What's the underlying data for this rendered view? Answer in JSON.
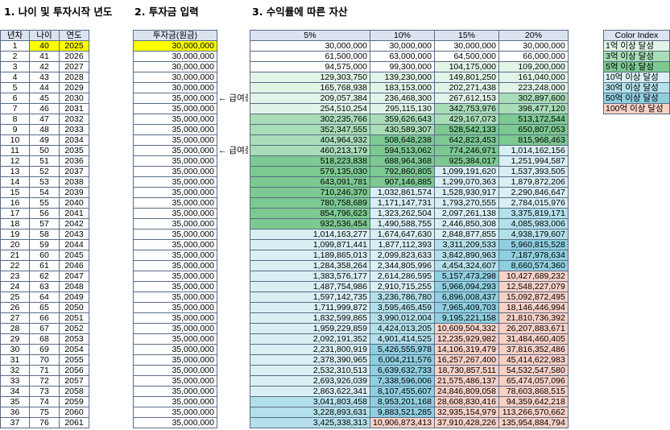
{
  "titles": {
    "section1": "1. 나이 및 투자시작 년도",
    "section2": "2. 투자금 입력",
    "section3": "3. 수익률에 따른 자산"
  },
  "table1": {
    "headers": [
      "년차",
      "나이",
      "연도"
    ],
    "rows": [
      [
        "1",
        "40",
        "2025"
      ],
      [
        "2",
        "41",
        "2026"
      ],
      [
        "3",
        "42",
        "2027"
      ],
      [
        "4",
        "43",
        "2028"
      ],
      [
        "5",
        "44",
        "2029"
      ],
      [
        "6",
        "45",
        "2030"
      ],
      [
        "7",
        "46",
        "2031"
      ],
      [
        "8",
        "47",
        "2032"
      ],
      [
        "9",
        "48",
        "2033"
      ],
      [
        "10",
        "49",
        "2034"
      ],
      [
        "11",
        "50",
        "2035"
      ],
      [
        "12",
        "51",
        "2036"
      ],
      [
        "13",
        "52",
        "2037"
      ],
      [
        "14",
        "53",
        "2038"
      ],
      [
        "15",
        "54",
        "2039"
      ],
      [
        "16",
        "55",
        "2040"
      ],
      [
        "17",
        "56",
        "2041"
      ],
      [
        "18",
        "57",
        "2042"
      ],
      [
        "19",
        "58",
        "2043"
      ],
      [
        "20",
        "59",
        "2044"
      ],
      [
        "21",
        "60",
        "2045"
      ],
      [
        "22",
        "61",
        "2046"
      ],
      [
        "23",
        "62",
        "2047"
      ],
      [
        "24",
        "63",
        "2048"
      ],
      [
        "25",
        "64",
        "2049"
      ],
      [
        "26",
        "65",
        "2050"
      ],
      [
        "27",
        "66",
        "2051"
      ],
      [
        "28",
        "67",
        "2052"
      ],
      [
        "29",
        "68",
        "2053"
      ],
      [
        "30",
        "69",
        "2054"
      ],
      [
        "31",
        "70",
        "2055"
      ],
      [
        "32",
        "71",
        "2056"
      ],
      [
        "33",
        "72",
        "2057"
      ],
      [
        "34",
        "73",
        "2058"
      ],
      [
        "35",
        "74",
        "2059"
      ],
      [
        "36",
        "75",
        "2060"
      ],
      [
        "37",
        "76",
        "2061"
      ]
    ]
  },
  "table2": {
    "header": "투자금(원금)",
    "values": [
      "30,000,000",
      "30,000,000",
      "30,000,000",
      "30,000,000",
      "30,000,000",
      "35,000,000",
      "35,000,000",
      "35,000,000",
      "35,000,000",
      "35,000,000",
      "35,000,000",
      "35,000,000",
      "35,000,000",
      "35,000,000",
      "35,000,000",
      "35,000,000",
      "35,000,000",
      "35,000,000",
      "35,000,000",
      "35,000,000",
      "35,000,000",
      "35,000,000",
      "35,000,000",
      "35,000,000",
      "35,000,000",
      "35,000,000",
      "35,000,000",
      "35,000,000",
      "35,000,000",
      "35,000,000",
      "35,000,000",
      "35,000,000",
      "35,000,000",
      "35,000,000",
      "35,000,000",
      "35,000,000",
      "35,000,000"
    ]
  },
  "notes": [
    {
      "row": 5,
      "text": "← 급여증가"
    },
    {
      "row": 10,
      "text": "← 급여증가"
    }
  ],
  "table3": {
    "headers": [
      "5%",
      "10%",
      "15%",
      "20%"
    ],
    "rows": [
      [
        "30,000,000",
        "30,000,000",
        "30,000,000",
        "30,000,000"
      ],
      [
        "61,500,000",
        "63,000,000",
        "64,500,000",
        "66,000,000"
      ],
      [
        "94,575,000",
        "99,300,000",
        "104,175,000",
        "109,200,000"
      ],
      [
        "129,303,750",
        "139,230,000",
        "149,801,250",
        "161,040,000"
      ],
      [
        "165,768,938",
        "183,153,000",
        "202,271,438",
        "223,248,000"
      ],
      [
        "209,057,384",
        "236,468,300",
        "267,612,153",
        "302,897,600"
      ],
      [
        "254,510,254",
        "295,115,130",
        "342,753,976",
        "398,477,120"
      ],
      [
        "302,235,766",
        "359,626,643",
        "429,167,073",
        "513,172,544"
      ],
      [
        "352,347,555",
        "430,589,307",
        "528,542,133",
        "650,807,053"
      ],
      [
        "404,964,932",
        "508,648,238",
        "642,823,453",
        "815,968,463"
      ],
      [
        "460,213,179",
        "594,513,062",
        "774,246,971",
        "1,014,162,156"
      ],
      [
        "518,223,838",
        "688,964,368",
        "925,384,017",
        "1,251,994,587"
      ],
      [
        "579,135,030",
        "792,860,805",
        "1,099,191,620",
        "1,537,393,505"
      ],
      [
        "643,091,781",
        "907,146,885",
        "1,299,070,363",
        "1,879,872,206"
      ],
      [
        "710,246,370",
        "1,032,861,574",
        "1,528,930,917",
        "2,290,846,647"
      ],
      [
        "780,758,689",
        "1,171,147,731",
        "1,793,270,555",
        "2,784,015,976"
      ],
      [
        "854,796,623",
        "1,323,262,504",
        "2,097,261,138",
        "3,375,819,171"
      ],
      [
        "932,536,454",
        "1,490,588,755",
        "2,446,850,308",
        "4,085,983,006"
      ],
      [
        "1,014,163,277",
        "1,674,647,630",
        "2,848,877,855",
        "4,938,179,607"
      ],
      [
        "1,099,871,441",
        "1,877,112,393",
        "3,311,209,533",
        "5,960,815,528"
      ],
      [
        "1,189,865,013",
        "2,099,823,633",
        "3,842,890,963",
        "7,187,978,634"
      ],
      [
        "1,284,358,264",
        "2,344,805,996",
        "4,454,324,607",
        "8,660,574,360"
      ],
      [
        "1,383,576,177",
        "2,614,286,595",
        "5,157,473,298",
        "10,427,689,232"
      ],
      [
        "1,487,754,986",
        "2,910,715,255",
        "5,966,094,293",
        "12,548,227,079"
      ],
      [
        "1,597,142,735",
        "3,236,786,780",
        "6,896,008,437",
        "15,092,872,495"
      ],
      [
        "1,711,999,872",
        "3,595,465,459",
        "7,965,409,703",
        "18,146,446,994"
      ],
      [
        "1,832,599,865",
        "3,990,012,004",
        "9,195,221,158",
        "21,810,736,392"
      ],
      [
        "1,959,229,859",
        "4,424,013,205",
        "10,609,504,332",
        "26,207,883,671"
      ],
      [
        "2,092,191,352",
        "4,901,414,525",
        "12,235,929,982",
        "31,484,460,405"
      ],
      [
        "2,231,800,919",
        "5,426,555,978",
        "14,106,319,479",
        "37,816,352,486"
      ],
      [
        "2,378,390,965",
        "6,004,211,576",
        "16,257,267,400",
        "45,414,622,983"
      ],
      [
        "2,532,310,513",
        "6,639,632,733",
        "18,730,857,511",
        "54,532,547,580"
      ],
      [
        "2,693,926,039",
        "7,338,596,006",
        "21,575,486,137",
        "65,474,057,096"
      ],
      [
        "2,863,622,341",
        "8,107,455,607",
        "24,846,809,058",
        "78,603,868,515"
      ],
      [
        "3,041,803,458",
        "8,953,201,168",
        "28,608,830,416",
        "94,359,642,218"
      ],
      [
        "3,228,893,631",
        "9,883,521,285",
        "32,935,154,979",
        "113,266,570,662"
      ],
      [
        "3,425,338,313",
        "10,906,873,413",
        "37,910,428,226",
        "135,954,884,794"
      ]
    ]
  },
  "legend": {
    "header": "Color Index",
    "items": [
      {
        "label": "1억 이상 달성",
        "color": "#e2f4e8"
      },
      {
        "label": "3억 이상 달성",
        "color": "#a9ddb8"
      },
      {
        "label": "5억 이상 달성",
        "color": "#7cc991"
      },
      {
        "label": "10억 이상 달성",
        "color": "#d9eff3"
      },
      {
        "label": "30억 이상 달성",
        "color": "#b3e0ea"
      },
      {
        "label": "50억 이상 달성",
        "color": "#8fcfe0"
      },
      {
        "label": "100억 이상 달성",
        "color": "#f8d1c6"
      }
    ]
  },
  "colors": {
    "highlight_yellow": "#ffff00",
    "header_bg": "#dbe3f1"
  }
}
